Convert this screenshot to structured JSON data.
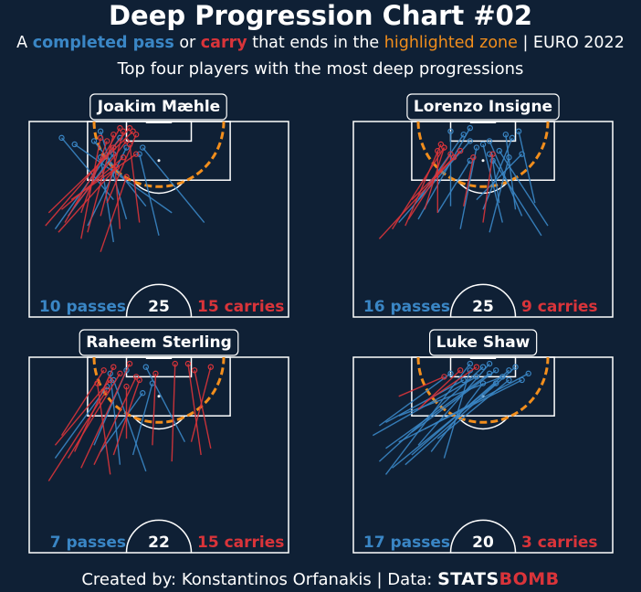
{
  "header": {
    "title": "Deep Progression Chart #02",
    "subtitle_parts": [
      {
        "text": "A ",
        "color": "#ffffff",
        "bold": false
      },
      {
        "text": "completed pass",
        "color": "#3a86c5",
        "bold": true
      },
      {
        "text": " or ",
        "color": "#ffffff",
        "bold": false
      },
      {
        "text": "carry",
        "color": "#d9343a",
        "bold": true
      },
      {
        "text": " that ends in the ",
        "color": "#ffffff",
        "bold": false
      },
      {
        "text": "highlighted zone",
        "color": "#f28e1c",
        "bold": false
      },
      {
        "text": " | EURO 2022",
        "color": "#ffffff",
        "bold": false
      }
    ],
    "subtitle2": "Top four players with the most deep progressions"
  },
  "footer": {
    "credit": "Created by: Konstantinos Orfanakis | Data: ",
    "logo_text_1": "STATS",
    "logo_text_2": "BOMB"
  },
  "colors": {
    "background": "#0f2035",
    "pass": "#3a86c5",
    "carry": "#d9343a",
    "zone": "#f28e1c",
    "pitch_lines": "#ffffff"
  },
  "chart_data": [
    {
      "type": "pitch-map",
      "player": "Joakim Mæhle",
      "total": "25",
      "passes_label": "10 passes",
      "carries_label": "15 carries",
      "passes": [
        {
          "start": [
            96,
            26
          ],
          "end": [
            115,
            10
          ]
        },
        {
          "start": [
            90,
            30
          ],
          "end": [
            117,
            22
          ]
        },
        {
          "start": [
            88,
            18
          ],
          "end": [
            112,
            30
          ]
        },
        {
          "start": [
            91,
            12
          ],
          "end": [
            110,
            26
          ]
        },
        {
          "start": [
            94,
            36
          ],
          "end": [
            114,
            20
          ]
        },
        {
          "start": [
            85,
            40
          ],
          "end": [
            110,
            34
          ]
        },
        {
          "start": [
            92,
            44
          ],
          "end": [
            113,
            14
          ]
        },
        {
          "start": [
            87,
            8
          ],
          "end": [
            115,
            28
          ]
        },
        {
          "start": [
            89,
            54
          ],
          "end": [
            112,
            35
          ]
        },
        {
          "start": [
            83,
            26
          ],
          "end": [
            109,
            22
          ]
        }
      ],
      "carries": [
        {
          "start": [
            89,
            11
          ],
          "end": [
            118,
            28
          ]
        },
        {
          "start": [
            92,
            6
          ],
          "end": [
            117,
            32
          ]
        },
        {
          "start": [
            86,
            18
          ],
          "end": [
            116,
            26
          ]
        },
        {
          "start": [
            94,
            14
          ],
          "end": [
            114,
            30
          ]
        },
        {
          "start": [
            80,
            22
          ],
          "end": [
            103,
            30
          ]
        },
        {
          "start": [
            93,
            10
          ],
          "end": [
            109,
            29
          ]
        },
        {
          "start": [
            87,
            28
          ],
          "end": [
            112,
            26
          ]
        },
        {
          "start": [
            84,
            16
          ],
          "end": [
            115,
            22
          ]
        },
        {
          "start": [
            96,
            13
          ],
          "end": [
            110,
            33
          ]
        },
        {
          "start": [
            91,
            22
          ],
          "end": [
            117,
            29
          ]
        },
        {
          "start": [
            89,
            34
          ],
          "end": [
            113,
            31
          ]
        },
        {
          "start": [
            86,
            9
          ],
          "end": [
            106,
            27
          ]
        },
        {
          "start": [
            95,
            24
          ],
          "end": [
            116,
            33
          ]
        },
        {
          "start": [
            92,
            16
          ],
          "end": [
            114,
            24
          ]
        },
        {
          "start": [
            88,
            5
          ],
          "end": [
            118,
            31
          ]
        }
      ]
    },
    {
      "type": "pitch-map",
      "player": "Lorenzo Insigne",
      "total": "25",
      "passes_label": "16 passes",
      "carries_label": "9 carries",
      "passes": [
        {
          "start": [
            89,
            14
          ],
          "end": [
            114,
            36
          ]
        },
        {
          "start": [
            93,
            50
          ],
          "end": [
            116,
            47
          ]
        },
        {
          "start": [
            96,
            38
          ],
          "end": [
            110,
            52
          ]
        },
        {
          "start": [
            95,
            45
          ],
          "end": [
            108,
            43
          ]
        },
        {
          "start": [
            90,
            20
          ],
          "end": [
            118,
            36
          ]
        },
        {
          "start": [
            86,
            42
          ],
          "end": [
            109,
            48
          ]
        },
        {
          "start": [
            88,
            60
          ],
          "end": [
            111,
            45
          ]
        },
        {
          "start": [
            94,
            30
          ],
          "end": [
            117,
            30
          ]
        },
        {
          "start": [
            91,
            52
          ],
          "end": [
            114,
            42
          ]
        },
        {
          "start": [
            87,
            33
          ],
          "end": [
            112,
            38
          ]
        },
        {
          "start": [
            93,
            40
          ],
          "end": [
            115,
            49
          ]
        },
        {
          "start": [
            85,
            58
          ],
          "end": [
            110,
            42
          ]
        },
        {
          "start": [
            96,
            20
          ],
          "end": [
            116,
            34
          ]
        },
        {
          "start": [
            89,
            46
          ],
          "end": [
            113,
            40
          ]
        },
        {
          "start": [
            92,
            26
          ],
          "end": [
            108,
            36
          ]
        },
        {
          "start": [
            95,
            56
          ],
          "end": [
            117,
            51
          ]
        }
      ],
      "carries": [
        {
          "start": [
            87,
            12
          ],
          "end": [
            112,
            28
          ]
        },
        {
          "start": [
            92,
            26
          ],
          "end": [
            111,
            26
          ]
        },
        {
          "start": [
            90,
            17
          ],
          "end": [
            110,
            30
          ]
        },
        {
          "start": [
            94,
            34
          ],
          "end": [
            109,
            37
          ]
        },
        {
          "start": [
            84,
            8
          ],
          "end": [
            111,
            33
          ]
        },
        {
          "start": [
            89,
            40
          ],
          "end": [
            110,
            43
          ]
        },
        {
          "start": [
            96,
            18
          ],
          "end": [
            109,
            31
          ]
        },
        {
          "start": [
            93,
            22
          ],
          "end": [
            112,
            28
          ]
        },
        {
          "start": [
            88,
            16
          ],
          "end": [
            113,
            27
          ]
        }
      ]
    },
    {
      "type": "pitch-map",
      "player": "Raheem Sterling",
      "total": "22",
      "passes_label": "7 passes",
      "carries_label": "15 carries",
      "passes": [
        {
          "start": [
            90,
            32
          ],
          "end": [
            112,
            38
          ]
        },
        {
          "start": [
            93,
            20
          ],
          "end": [
            116,
            30
          ]
        },
        {
          "start": [
            85,
            36
          ],
          "end": [
            113,
            26
          ]
        },
        {
          "start": [
            94,
            48
          ],
          "end": [
            117,
            36
          ]
        },
        {
          "start": [
            89,
            8
          ],
          "end": [
            111,
            24
          ]
        },
        {
          "start": [
            91,
            22
          ],
          "end": [
            109,
            35
          ]
        },
        {
          "start": [
            87,
            28
          ],
          "end": [
            115,
            25
          ]
        }
      ],
      "carries": [
        {
          "start": [
            86,
            16
          ],
          "end": [
            118,
            31
          ]
        },
        {
          "start": [
            90,
            53
          ],
          "end": [
            118,
            49
          ]
        },
        {
          "start": [
            92,
            56
          ],
          "end": [
            116,
            51
          ]
        },
        {
          "start": [
            94,
            50
          ],
          "end": [
            117,
            56
          ]
        },
        {
          "start": [
            89,
            12
          ],
          "end": [
            115,
            28
          ]
        },
        {
          "start": [
            93,
            8
          ],
          "end": [
            113,
            25
          ]
        },
        {
          "start": [
            82,
            6
          ],
          "end": [
            110,
            24
          ]
        },
        {
          "start": [
            87,
            20
          ],
          "end": [
            114,
            33
          ]
        },
        {
          "start": [
            91,
            14
          ],
          "end": [
            117,
            26
          ]
        },
        {
          "start": [
            95,
            30
          ],
          "end": [
            111,
            30
          ]
        },
        {
          "start": [
            84,
            25
          ],
          "end": [
            112,
            21
          ]
        },
        {
          "start": [
            96,
            10
          ],
          "end": [
            116,
            23
          ]
        },
        {
          "start": [
            88,
            44
          ],
          "end": [
            118,
            45
          ]
        },
        {
          "start": [
            93,
            38
          ],
          "end": [
            115,
            39
          ]
        },
        {
          "start": [
            90,
            26
          ],
          "end": [
            113,
            34
          ]
        }
      ]
    },
    {
      "type": "pitch-map",
      "player": "Luke Shaw",
      "total": "20",
      "passes_label": "17 passes",
      "carries_label": "3 carries",
      "passes": [
        {
          "start": [
            100,
            10
          ],
          "end": [
            113,
            34
          ]
        },
        {
          "start": [
            96,
            6
          ],
          "end": [
            114,
            38
          ]
        },
        {
          "start": [
            92,
            10
          ],
          "end": [
            115,
            42
          ]
        },
        {
          "start": [
            88,
            8
          ],
          "end": [
            117,
            40
          ]
        },
        {
          "start": [
            86,
            12
          ],
          "end": [
            112,
            44
          ]
        },
        {
          "start": [
            90,
            18
          ],
          "end": [
            116,
            48
          ]
        },
        {
          "start": [
            94,
            14
          ],
          "end": [
            113,
            52
          ]
        },
        {
          "start": [
            98,
            22
          ],
          "end": [
            115,
            54
          ]
        },
        {
          "start": [
            84,
            10
          ],
          "end": [
            118,
            36
          ]
        },
        {
          "start": [
            102,
            14
          ],
          "end": [
            114,
            46
          ]
        },
        {
          "start": [
            97,
            18
          ],
          "end": [
            116,
            44
          ]
        },
        {
          "start": [
            91,
            24
          ],
          "end": [
            112,
            40
          ]
        },
        {
          "start": [
            87,
            16
          ],
          "end": [
            117,
            50
          ]
        },
        {
          "start": [
            99,
            8
          ],
          "end": [
            115,
            30
          ]
        },
        {
          "start": [
            95,
            26
          ],
          "end": [
            113,
            48
          ]
        },
        {
          "start": [
            93,
            20
          ],
          "end": [
            118,
            42
          ]
        },
        {
          "start": [
            89,
            28
          ],
          "end": [
            116,
            36
          ]
        }
      ],
      "carries": [
        {
          "start": [
            104,
            20
          ],
          "end": [
            116,
            33
          ]
        },
        {
          "start": [
            108,
            14
          ],
          "end": [
            114,
            28
          ]
        },
        {
          "start": [
            106,
            22
          ],
          "end": [
            117,
            38
          ]
        }
      ]
    }
  ]
}
